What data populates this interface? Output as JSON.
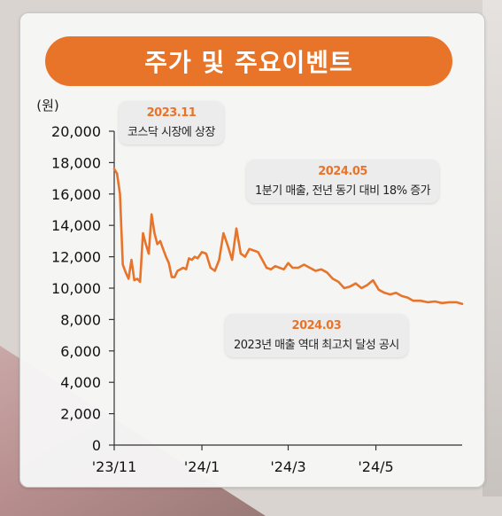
{
  "title": "주가 및 주요이벤트",
  "chart_data": {
    "type": "line",
    "ylabel": "(원)",
    "ylim": [
      0,
      20000
    ],
    "yticks": [
      "0",
      "2,000",
      "4,000",
      "6,000",
      "8,000",
      "10,000",
      "12,000",
      "14,000",
      "16,000",
      "18,000",
      "20,000"
    ],
    "xticks": [
      "'23/11",
      "'24/1",
      "'24/3",
      "'24/5"
    ],
    "xlim": [
      "2023-11-01",
      "2024-06-30"
    ],
    "color": "#e8742a",
    "series": [
      {
        "x": [
          "2023-11-01",
          "2023-11-03",
          "2023-11-05",
          "2023-11-07",
          "2023-11-09",
          "2023-11-11",
          "2023-11-13",
          "2023-11-15",
          "2023-11-17",
          "2023-11-19",
          "2023-11-21",
          "2023-11-23",
          "2023-11-25",
          "2023-11-27",
          "2023-11-29",
          "2023-12-01",
          "2023-12-03",
          "2023-12-05",
          "2023-12-07",
          "2023-12-09",
          "2023-12-11",
          "2023-12-13",
          "2023-12-15",
          "2023-12-17",
          "2023-12-19",
          "2023-12-21",
          "2023-12-23",
          "2023-12-25",
          "2023-12-27",
          "2023-12-29",
          "2024-01-01",
          "2024-01-04",
          "2024-01-07",
          "2024-01-10",
          "2024-01-13",
          "2024-01-16",
          "2024-01-19",
          "2024-01-22",
          "2024-01-25",
          "2024-01-28",
          "2024-01-31",
          "2024-02-03",
          "2024-02-06",
          "2024-02-09",
          "2024-02-12",
          "2024-02-15",
          "2024-02-18",
          "2024-02-21",
          "2024-02-24",
          "2024-02-27",
          "2024-03-01",
          "2024-03-04",
          "2024-03-08",
          "2024-03-12",
          "2024-03-16",
          "2024-03-20",
          "2024-03-24",
          "2024-03-28",
          "2024-04-01",
          "2024-04-05",
          "2024-04-09",
          "2024-04-13",
          "2024-04-17",
          "2024-04-21",
          "2024-04-25",
          "2024-04-29",
          "2024-05-03",
          "2024-05-07",
          "2024-05-11",
          "2024-05-15",
          "2024-05-19",
          "2024-05-23",
          "2024-05-27",
          "2024-06-01",
          "2024-06-06",
          "2024-06-11",
          "2024-06-16",
          "2024-06-21",
          "2024-06-26",
          "2024-06-30"
        ],
        "y": [
          17600,
          17300,
          16000,
          11500,
          11000,
          10600,
          11800,
          10500,
          10600,
          10400,
          13500,
          12800,
          12200,
          14700,
          13500,
          12800,
          13000,
          12500,
          12000,
          11600,
          10700,
          10700,
          11100,
          11200,
          11300,
          11200,
          11900,
          11800,
          12000,
          11900,
          12300,
          12200,
          11300,
          11100,
          11800,
          13500,
          12700,
          11800,
          13800,
          12200,
          12000,
          12500,
          12400,
          12300,
          11800,
          11300,
          11200,
          11400,
          11300,
          11200,
          11600,
          11300,
          11300,
          11500,
          11300,
          11100,
          11200,
          11000,
          10600,
          10400,
          10000,
          10100,
          10300,
          10000,
          10200,
          10500,
          9900,
          9700,
          9600,
          9700,
          9500,
          9400,
          9200,
          9200,
          9100,
          9150,
          9050,
          9100,
          9100,
          9000
        ]
      }
    ],
    "annotations": [
      {
        "date": "2023.11",
        "text": "코스닥 시장에 상장"
      },
      {
        "date": "2024.05",
        "text": "1분기 매출, 전년 동기 대비 18% 증가"
      },
      {
        "date": "2024.03",
        "text": "2023년 매출 역대 최고치 달성 공시"
      }
    ]
  }
}
